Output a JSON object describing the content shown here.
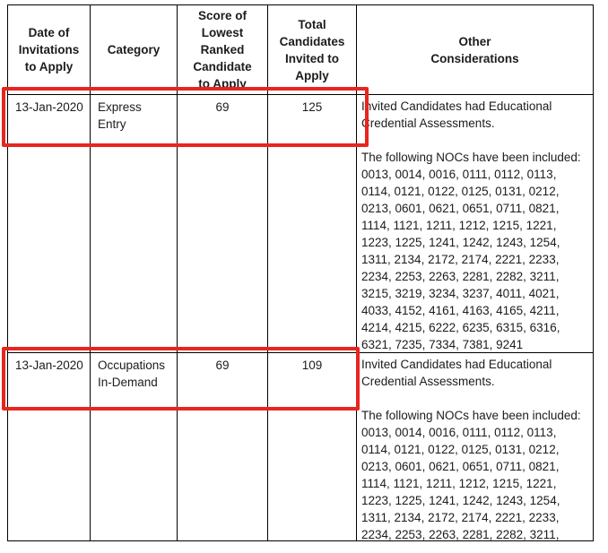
{
  "colors": {
    "annotation_red": "#e8251e",
    "table_border": "#000000",
    "text": "#1c1c1c",
    "background": "#ffffff"
  },
  "table": {
    "headers": {
      "date": "Date of\nInvitations\nto Apply",
      "category": "Category",
      "score": "Score of\nLowest\nRanked\nCandidate\nto Apply",
      "total": "Total\nCandidates\nInvited to\nApply",
      "other": "Other\nConsiderations"
    },
    "rows": [
      {
        "date": "13-Jan-2020",
        "category": "Express\nEntry",
        "score": "69",
        "total": "125",
        "other": "Invited Candidates had Educational\nCredential Assessments.\n\nThe following NOCs have been included:\n0013, 0014, 0016, 0111, 0112, 0113,\n0114, 0121, 0122, 0125, 0131, 0212,\n0213, 0601, 0621, 0651, 0711, 0821,\n1114, 1121, 1211, 1212, 1215, 1221,\n1223, 1225, 1241, 1242, 1243, 1254,\n1311, 2134, 2172, 2174, 2221, 2233,\n2234, 2253, 2263, 2281, 2282, 3211,\n3215, 3219, 3234, 3237, 4011, 4021,\n4033, 4152, 4161, 4163, 4165, 4211,\n4214, 4215, 6222, 6235, 6315, 6316,\n6321, 7235, 7334, 7381, 9241"
      },
      {
        "date": "13-Jan-2020",
        "category": "Occupations\nIn-Demand",
        "score": "69",
        "total": "109",
        "other": "Invited Candidates had Educational\nCredential Assessments.\n\nThe following NOCs have been included:\n0013, 0014, 0016, 0111, 0112, 0113,\n0114, 0121, 0122, 0125, 0131, 0212,\n0213, 0601, 0621, 0651, 0711, 0821,\n1114, 1121, 1211, 1212, 1215, 1221,\n1223, 1225, 1241, 1242, 1243, 1254,\n1311, 2134, 2172, 2174, 2221, 2233,\n2234, 2253, 2263, 2281, 2282, 3211,"
      }
    ]
  }
}
